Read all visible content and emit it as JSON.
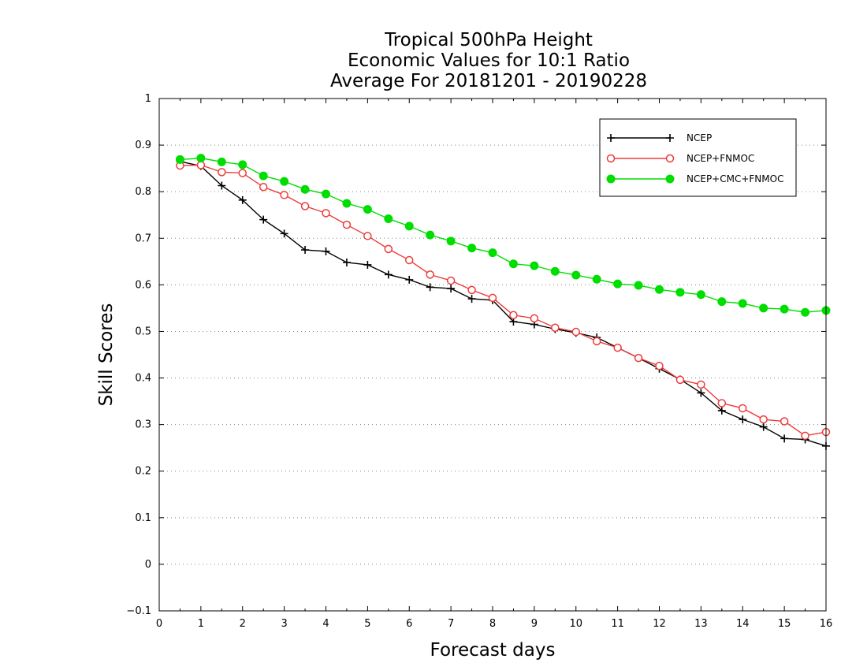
{
  "chart_data": {
    "type": "line",
    "title_lines": [
      "Tropical 500hPa Height",
      "Economic Values for 10:1 Ratio",
      "Average For 20181201 - 20190228"
    ],
    "xlabel": "Forecast days",
    "ylabel": "Skill Scores",
    "xlim": [
      0,
      16
    ],
    "ylim": [
      -0.1,
      1
    ],
    "xticks": [
      0,
      1,
      2,
      3,
      4,
      5,
      6,
      7,
      8,
      9,
      10,
      11,
      12,
      13,
      14,
      15,
      16
    ],
    "yticks": [
      -0.1,
      0,
      0.1,
      0.2,
      0.3,
      0.4,
      0.5,
      0.6,
      0.7,
      0.8,
      0.9,
      1
    ],
    "xtick_labels": [
      "0",
      "1",
      "2",
      "3",
      "4",
      "5",
      "6",
      "7",
      "8",
      "9",
      "10",
      "11",
      "12",
      "13",
      "14",
      "15",
      "16"
    ],
    "ytick_labels": [
      "-0.1",
      "0",
      "0.1",
      "0.2",
      "0.3",
      "0.4",
      "0.5",
      "0.6",
      "0.7",
      "0.8",
      "0.9",
      "1"
    ],
    "grid": "dotted-horizontal",
    "legend_position": "top-right",
    "x": [
      0.5,
      1,
      1.5,
      2,
      2.5,
      3,
      3.5,
      4,
      4.5,
      5,
      5.5,
      6,
      6.5,
      7,
      7.5,
      8,
      8.5,
      9,
      9.5,
      10,
      10.5,
      11,
      11.5,
      12,
      12.5,
      13,
      13.5,
      14,
      14.5,
      15,
      15.5,
      16
    ],
    "series": [
      {
        "name": "NCEP",
        "color": "#000000",
        "marker": "plus",
        "values": [
          0.865,
          0.855,
          0.813,
          0.782,
          0.74,
          0.71,
          0.675,
          0.672,
          0.648,
          0.643,
          0.622,
          0.611,
          0.595,
          0.592,
          0.57,
          0.567,
          0.521,
          0.515,
          0.505,
          0.497,
          0.487,
          0.465,
          0.443,
          0.42,
          0.397,
          0.368,
          0.33,
          0.311,
          0.295,
          0.27,
          0.268,
          0.254
        ]
      },
      {
        "name": "NCEP+FNMOC",
        "color": "#ee3b3b",
        "marker": "open-circle",
        "values": [
          0.856,
          0.857,
          0.842,
          0.84,
          0.81,
          0.793,
          0.769,
          0.754,
          0.729,
          0.705,
          0.677,
          0.653,
          0.622,
          0.609,
          0.589,
          0.572,
          0.535,
          0.528,
          0.508,
          0.499,
          0.479,
          0.465,
          0.443,
          0.426,
          0.396,
          0.386,
          0.346,
          0.335,
          0.311,
          0.307,
          0.276,
          0.284
        ]
      },
      {
        "name": "NCEP+CMC+FNMOC",
        "color": "#00dd00",
        "marker": "filled-circle",
        "values": [
          0.869,
          0.872,
          0.864,
          0.858,
          0.834,
          0.822,
          0.805,
          0.795,
          0.775,
          0.762,
          0.742,
          0.726,
          0.707,
          0.694,
          0.679,
          0.669,
          0.645,
          0.641,
          0.629,
          0.621,
          0.612,
          0.602,
          0.599,
          0.59,
          0.584,
          0.579,
          0.564,
          0.56,
          0.55,
          0.548,
          0.541,
          0.545
        ]
      }
    ]
  }
}
